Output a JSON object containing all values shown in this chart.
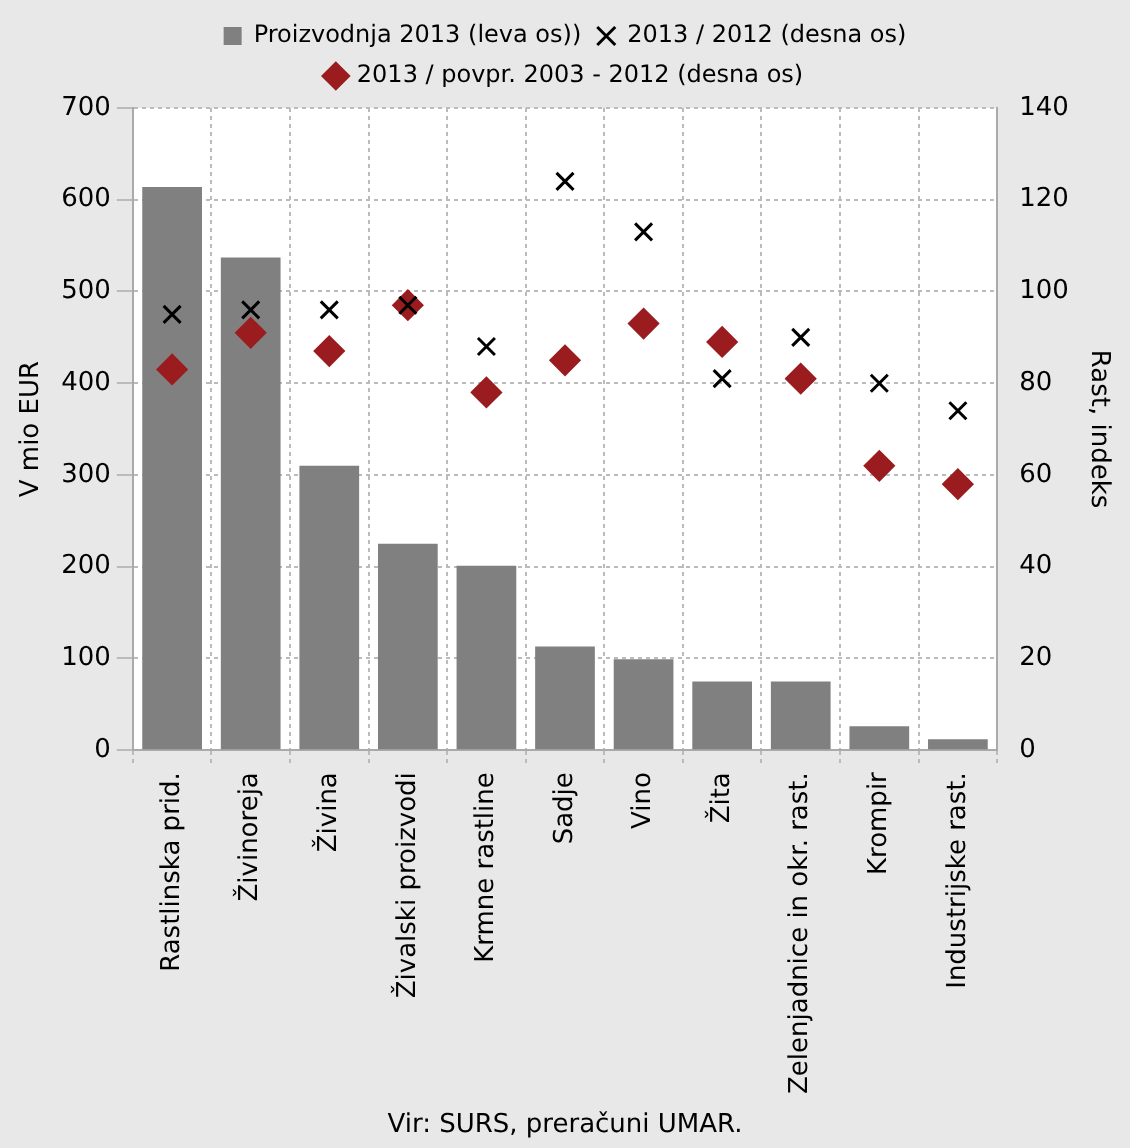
{
  "chart_data": {
    "type": "bar",
    "categories": [
      "Rastlinska prid.",
      "Živinoreja",
      "Živina",
      "Živalski proizvodi",
      "Krmne rastline",
      "Sadje",
      "Vino",
      "Žita",
      "Zelenjadnice in okr. rast.",
      "Krompir",
      "Industrijske rast."
    ],
    "series": [
      {
        "name": "Proizvodnja 2013 (leva os))",
        "color": "#808080",
        "marker": "square",
        "values": [
          614,
          537,
          310,
          225,
          201,
          113,
          99,
          75,
          75,
          26,
          12
        ]
      },
      {
        "name": "2013 / 2012 (desna os)",
        "type": "scatter",
        "axis": "y2",
        "color": "#000000",
        "marker": "cross",
        "values": [
          95,
          96,
          96,
          97,
          88,
          124,
          113,
          81,
          90,
          80,
          74
        ]
      },
      {
        "name": "2013 / povpr. 2003 - 2012 (desna os)",
        "type": "scatter",
        "axis": "y2",
        "color": "#9b1c1f",
        "marker": "diamond",
        "values": [
          83,
          91,
          87,
          97,
          78,
          85,
          93,
          89,
          81,
          62,
          58
        ]
      }
    ],
    "ylabel": "V mio EUR",
    "y2label": "Rast, indeks",
    "ylim": [
      0,
      700
    ],
    "yticks": [
      0,
      100,
      200,
      300,
      400,
      500,
      600,
      700
    ],
    "y2lim": [
      0,
      140
    ],
    "y2ticks": [
      0,
      20,
      40,
      60,
      80,
      100,
      120,
      140
    ],
    "grid": true,
    "legend": "top",
    "annotations": [
      "Vir: SURS, preračuni UMAR."
    ]
  }
}
